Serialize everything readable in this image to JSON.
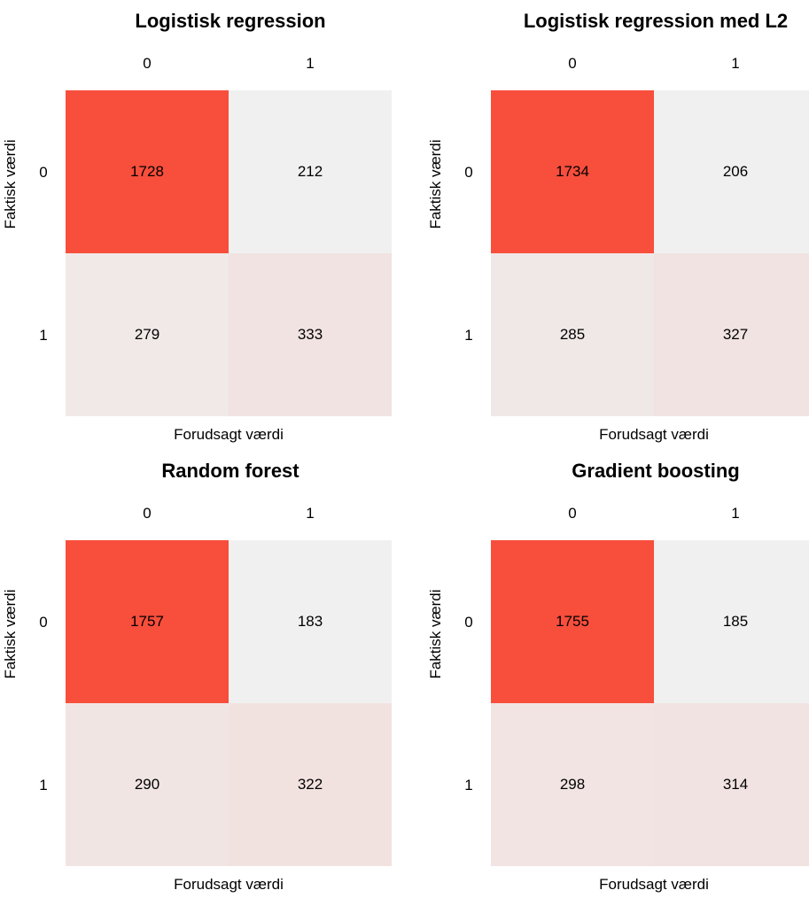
{
  "chart_data": [
    {
      "type": "heatmap",
      "title": "Logistisk regression",
      "xlabel": "Forudsagt værdi",
      "ylabel": "Faktisk værdi",
      "x_categories": [
        "0",
        "1"
      ],
      "y_categories": [
        "0",
        "1"
      ],
      "values": [
        [
          1728,
          212
        ],
        [
          279,
          333
        ]
      ]
    },
    {
      "type": "heatmap",
      "title": "Logistisk regression med L2",
      "xlabel": "Forudsagt værdi",
      "ylabel": "Faktisk værdi",
      "x_categories": [
        "0",
        "1"
      ],
      "y_categories": [
        "0",
        "1"
      ],
      "values": [
        [
          1734,
          206
        ],
        [
          285,
          327
        ]
      ]
    },
    {
      "type": "heatmap",
      "title": "Random forest",
      "xlabel": "Forudsagt værdi",
      "ylabel": "Faktisk værdi",
      "x_categories": [
        "0",
        "1"
      ],
      "y_categories": [
        "0",
        "1"
      ],
      "values": [
        [
          1757,
          183
        ],
        [
          290,
          322
        ]
      ]
    },
    {
      "type": "heatmap",
      "title": "Gradient boosting",
      "xlabel": "Forudsagt værdi",
      "ylabel": "Faktisk værdi",
      "x_categories": [
        "0",
        "1"
      ],
      "y_categories": [
        "0",
        "1"
      ],
      "values": [
        [
          1755,
          185
        ],
        [
          298,
          314
        ]
      ]
    }
  ],
  "colors": {
    "high": "#f84e3c",
    "low": "#f0f0f0"
  }
}
